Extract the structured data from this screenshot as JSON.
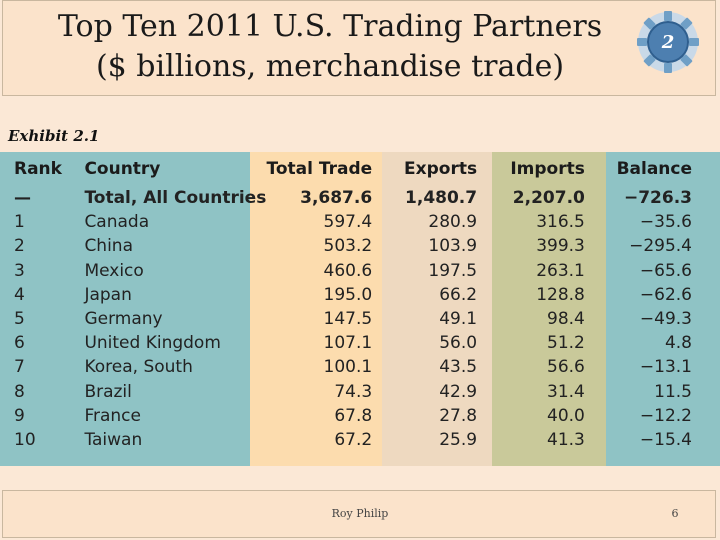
{
  "slide": {
    "title_line1": "Top Ten 2011 U.S. Trading Partners",
    "title_line2": "($ billions, merchandise trade)",
    "badge_number": "2",
    "exhibit_label": "Exhibit 2.1",
    "footer_author": "Roy Philip",
    "page_number": "6"
  },
  "colors": {
    "rank_col": "#8fc3c5",
    "country_col": "#8fc3c5",
    "total_col": "#fcdcae",
    "exports_col": "#eed9c0",
    "imports_col": "#c9c99a",
    "balance_col": "#8fc3c5"
  },
  "table": {
    "headers": [
      "Rank",
      "Country",
      "Total Trade",
      "Exports",
      "Imports",
      "Balance"
    ],
    "rows": [
      [
        "—",
        "Total, All Countries",
        "3,687.6",
        "1,480.7",
        "2,207.0",
        "−726.3"
      ],
      [
        "1",
        "Canada",
        "597.4",
        "280.9",
        "316.5",
        "−35.6"
      ],
      [
        "2",
        "China",
        "503.2",
        "103.9",
        "399.3",
        "−295.4"
      ],
      [
        "3",
        "Mexico",
        "460.6",
        "197.5",
        "263.1",
        "−65.6"
      ],
      [
        "4",
        "Japan",
        "195.0",
        "66.2",
        "128.8",
        "−62.6"
      ],
      [
        "5",
        "Germany",
        "147.5",
        "49.1",
        "98.4",
        "−49.3"
      ],
      [
        "6",
        "United Kingdom",
        "107.1",
        "56.0",
        "51.2",
        "4.8"
      ],
      [
        "7",
        "Korea, South",
        "100.1",
        "43.5",
        "56.6",
        "−13.1"
      ],
      [
        "8",
        "Brazil",
        "74.3",
        "42.9",
        "31.4",
        "11.5"
      ],
      [
        "9",
        "France",
        "67.8",
        "27.8",
        "40.0",
        "−12.2"
      ],
      [
        "10",
        "Taiwan",
        "67.2",
        "25.9",
        "41.3",
        "−15.4"
      ]
    ]
  }
}
